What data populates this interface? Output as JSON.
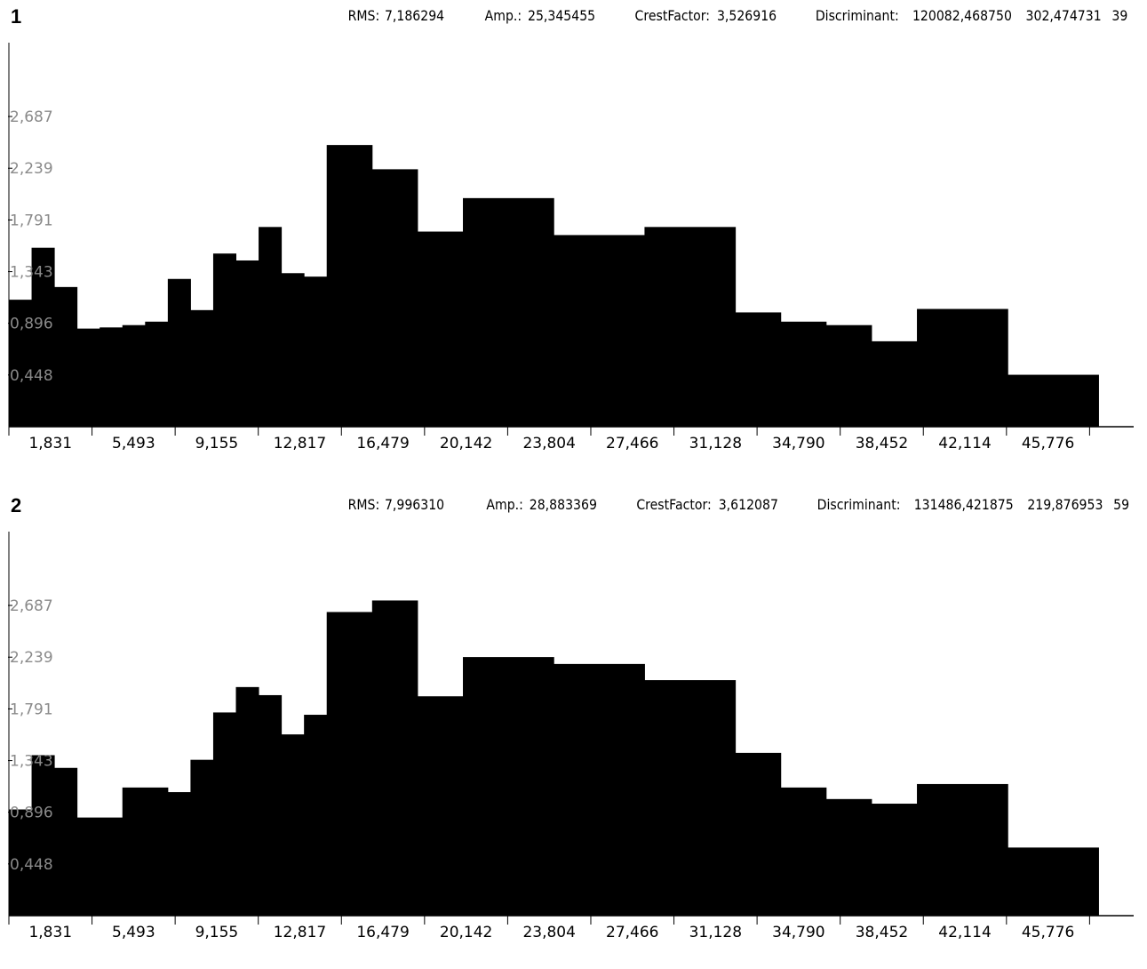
{
  "chart_data": [
    {
      "type": "bar",
      "index_label": "1",
      "stats": {
        "rms_label": "RMS:",
        "rms": "7,186294",
        "amp_label": "Amp.:",
        "amp": "25,345455",
        "crest_label": "CrestFactor:",
        "crest": "3,526916",
        "disc_label": "Discriminant:",
        "disc_1": "120082,468750",
        "disc_2": "302,474731",
        "disc_3": "39"
      },
      "xticks": [
        "1,831",
        "5,493",
        "9,155",
        "12,817",
        "16,479",
        "20,142",
        "23,804",
        "27,466",
        "31,128",
        "34,790",
        "38,452",
        "42,114",
        "45,776"
      ],
      "yticks": [
        "2,687",
        "2,239",
        "1,791",
        "1,343",
        "0,896",
        "0,448"
      ],
      "ylim": [
        0,
        3.08
      ],
      "xlim": [
        0.0,
        49.0
      ],
      "bars": [
        {
          "x0": 0.0,
          "x1": 1.0,
          "value": 1.1
        },
        {
          "x0": 1.0,
          "x1": 2.0,
          "value": 1.55
        },
        {
          "x0": 2.0,
          "x1": 3.0,
          "value": 1.21
        },
        {
          "x0": 3.0,
          "x1": 4.0,
          "value": 0.85
        },
        {
          "x0": 4.0,
          "x1": 5.0,
          "value": 0.86
        },
        {
          "x0": 5.0,
          "x1": 6.0,
          "value": 0.88
        },
        {
          "x0": 6.0,
          "x1": 7.0,
          "value": 0.91
        },
        {
          "x0": 7.0,
          "x1": 8.0,
          "value": 1.28
        },
        {
          "x0": 8.0,
          "x1": 9.0,
          "value": 1.01
        },
        {
          "x0": 9.0,
          "x1": 10.0,
          "value": 1.5
        },
        {
          "x0": 10.0,
          "x1": 11.0,
          "value": 1.44
        },
        {
          "x0": 11.0,
          "x1": 12.0,
          "value": 1.73
        },
        {
          "x0": 12.0,
          "x1": 13.0,
          "value": 1.33
        },
        {
          "x0": 13.0,
          "x1": 14.0,
          "value": 1.3
        },
        {
          "x0": 14.0,
          "x1": 16.0,
          "value": 2.44
        },
        {
          "x0": 16.0,
          "x1": 18.0,
          "value": 2.23
        },
        {
          "x0": 18.0,
          "x1": 20.0,
          "value": 1.69
        },
        {
          "x0": 20.0,
          "x1": 24.0,
          "value": 1.98
        },
        {
          "x0": 24.0,
          "x1": 28.0,
          "value": 1.66
        },
        {
          "x0": 28.0,
          "x1": 32.0,
          "value": 1.73
        },
        {
          "x0": 32.0,
          "x1": 34.0,
          "value": 0.99
        },
        {
          "x0": 34.0,
          "x1": 36.0,
          "value": 0.91
        },
        {
          "x0": 36.0,
          "x1": 38.0,
          "value": 0.88
        },
        {
          "x0": 38.0,
          "x1": 40.0,
          "value": 0.74
        },
        {
          "x0": 40.0,
          "x1": 44.0,
          "value": 1.02
        },
        {
          "x0": 44.0,
          "x1": 48.0,
          "value": 0.45
        }
      ]
    },
    {
      "type": "bar",
      "index_label": "2",
      "stats": {
        "rms_label": "RMS:",
        "rms": "7,996310",
        "amp_label": "Amp.:",
        "amp": "28,883369",
        "crest_label": "CrestFactor:",
        "crest": "3,612087",
        "disc_label": "Discriminant:",
        "disc_1": "131486,421875",
        "disc_2": "219,876953",
        "disc_3": "59"
      },
      "xticks": [
        "1,831",
        "5,493",
        "9,155",
        "12,817",
        "16,479",
        "20,142",
        "23,804",
        "27,466",
        "31,128",
        "34,790",
        "38,452",
        "42,114",
        "45,776"
      ],
      "yticks": [
        "2,687",
        "2,239",
        "1,791",
        "1,343",
        "0,896",
        "0,448"
      ],
      "ylim": [
        0,
        3.08
      ],
      "xlim": [
        0.0,
        49.0
      ],
      "bars": [
        {
          "x0": 0.0,
          "x1": 1.0,
          "value": 0.92
        },
        {
          "x0": 1.0,
          "x1": 2.0,
          "value": 1.39
        },
        {
          "x0": 2.0,
          "x1": 3.0,
          "value": 1.28
        },
        {
          "x0": 3.0,
          "x1": 5.0,
          "value": 0.85
        },
        {
          "x0": 5.0,
          "x1": 7.0,
          "value": 1.11
        },
        {
          "x0": 7.0,
          "x1": 8.0,
          "value": 1.07
        },
        {
          "x0": 8.0,
          "x1": 9.0,
          "value": 1.35
        },
        {
          "x0": 9.0,
          "x1": 10.0,
          "value": 1.76
        },
        {
          "x0": 10.0,
          "x1": 11.0,
          "value": 1.98
        },
        {
          "x0": 11.0,
          "x1": 12.0,
          "value": 1.91
        },
        {
          "x0": 12.0,
          "x1": 13.0,
          "value": 1.57
        },
        {
          "x0": 13.0,
          "x1": 14.0,
          "value": 1.74
        },
        {
          "x0": 14.0,
          "x1": 16.0,
          "value": 2.63
        },
        {
          "x0": 16.0,
          "x1": 18.0,
          "value": 2.73
        },
        {
          "x0": 18.0,
          "x1": 20.0,
          "value": 1.9
        },
        {
          "x0": 20.0,
          "x1": 24.0,
          "value": 2.24
        },
        {
          "x0": 24.0,
          "x1": 28.0,
          "value": 2.18
        },
        {
          "x0": 28.0,
          "x1": 32.0,
          "value": 2.04
        },
        {
          "x0": 32.0,
          "x1": 34.0,
          "value": 1.41
        },
        {
          "x0": 34.0,
          "x1": 36.0,
          "value": 1.11
        },
        {
          "x0": 36.0,
          "x1": 38.0,
          "value": 1.01
        },
        {
          "x0": 38.0,
          "x1": 40.0,
          "value": 0.97
        },
        {
          "x0": 40.0,
          "x1": 44.0,
          "value": 1.14
        },
        {
          "x0": 44.0,
          "x1": 48.0,
          "value": 0.59
        }
      ]
    }
  ]
}
